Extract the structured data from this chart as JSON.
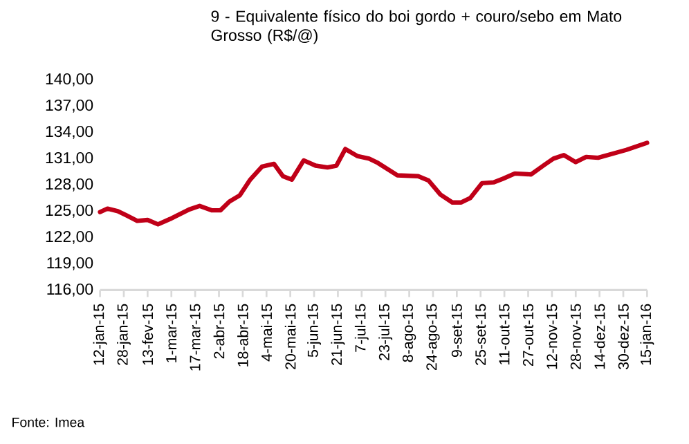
{
  "chart_data": {
    "type": "line",
    "title": "9 - Equivalente físico do boi gordo + couro/sebo em Mato Grosso (R$/@)",
    "annotations": [
      "Fonte: Imea"
    ],
    "series": [
      {
        "color": "#c00018",
        "x": [
          "2015-01-12",
          "2015-01-17",
          "2015-01-24",
          "2015-01-30",
          "2015-02-06",
          "2015-02-13",
          "2015-02-20",
          "2015-02-28",
          "2015-03-13",
          "2015-03-20",
          "2015-03-28",
          "2015-04-03",
          "2015-04-09",
          "2015-04-16",
          "2015-04-23",
          "2015-05-01",
          "2015-05-09",
          "2015-05-15",
          "2015-05-21",
          "2015-05-29",
          "2015-06-06",
          "2015-06-14",
          "2015-06-20",
          "2015-06-26",
          "2015-07-04",
          "2015-07-12",
          "2015-07-18",
          "2015-07-31",
          "2015-08-14",
          "2015-08-21",
          "2015-08-29",
          "2015-09-06",
          "2015-09-12",
          "2015-09-18",
          "2015-09-26",
          "2015-10-04",
          "2015-10-10",
          "2015-10-18",
          "2015-10-29",
          "2015-11-07",
          "2015-11-13",
          "2015-11-20",
          "2015-11-28",
          "2015-12-05",
          "2015-12-13",
          "2016-01-01",
          "2016-01-15"
        ],
        "values": [
          124.9,
          125.3,
          125.0,
          124.5,
          123.9,
          124.0,
          123.5,
          124.1,
          125.2,
          125.6,
          125.1,
          125.1,
          126.1,
          126.8,
          128.6,
          130.1,
          130.4,
          129.0,
          128.6,
          130.8,
          130.2,
          130.0,
          130.2,
          132.1,
          131.3,
          131.0,
          130.5,
          129.1,
          129.0,
          128.5,
          126.9,
          126.0,
          126.0,
          126.5,
          128.2,
          128.3,
          128.7,
          129.3,
          129.2,
          130.3,
          131.0,
          131.4,
          130.6,
          131.2,
          131.1,
          132.0,
          132.8
        ]
      }
    ],
    "xlim": [
      "2015-01-12",
      "2016-01-15"
    ],
    "xticks": [
      {
        "value": "2015-01-12",
        "label": "12-jan-15"
      },
      {
        "value": "2015-01-28",
        "label": "28-jan-15"
      },
      {
        "value": "2015-02-13",
        "label": "13-fev-15"
      },
      {
        "value": "2015-03-01",
        "label": "1-mar-15"
      },
      {
        "value": "2015-03-17",
        "label": "17-mar-15"
      },
      {
        "value": "2015-04-02",
        "label": "2-abr-15"
      },
      {
        "value": "2015-04-18",
        "label": "18-abr-15"
      },
      {
        "value": "2015-05-04",
        "label": "4-mai-15"
      },
      {
        "value": "2015-05-20",
        "label": "20-mai-15"
      },
      {
        "value": "2015-06-05",
        "label": "5-jun-15"
      },
      {
        "value": "2015-06-21",
        "label": "21-jun-15"
      },
      {
        "value": "2015-07-07",
        "label": "7-jul-15"
      },
      {
        "value": "2015-07-23",
        "label": "23-jul-15"
      },
      {
        "value": "2015-08-08",
        "label": "8-ago-15"
      },
      {
        "value": "2015-08-24",
        "label": "24-ago-15"
      },
      {
        "value": "2015-09-09",
        "label": "9-set-15"
      },
      {
        "value": "2015-09-25",
        "label": "25-set-15"
      },
      {
        "value": "2015-10-11",
        "label": "11-out-15"
      },
      {
        "value": "2015-10-27",
        "label": "27-out-15"
      },
      {
        "value": "2015-11-12",
        "label": "12-nov-15"
      },
      {
        "value": "2015-11-28",
        "label": "28-nov-15"
      },
      {
        "value": "2015-12-14",
        "label": "14-dez-15"
      },
      {
        "value": "2015-12-30",
        "label": "30-dez-15"
      },
      {
        "value": "2016-01-15",
        "label": "15-jan-16"
      }
    ],
    "ylim": [
      116,
      140
    ],
    "yticks": [
      {
        "value": 116,
        "label": "116,00"
      },
      {
        "value": 119,
        "label": "119,00"
      },
      {
        "value": 122,
        "label": "122,00"
      },
      {
        "value": 125,
        "label": "125,00"
      },
      {
        "value": 128,
        "label": "128,00"
      },
      {
        "value": 131,
        "label": "131,00"
      },
      {
        "value": 134,
        "label": "134,00"
      },
      {
        "value": 137,
        "label": "137,00"
      },
      {
        "value": 140,
        "label": "140,00"
      }
    ],
    "marker": "none",
    "line_style": "solid"
  }
}
